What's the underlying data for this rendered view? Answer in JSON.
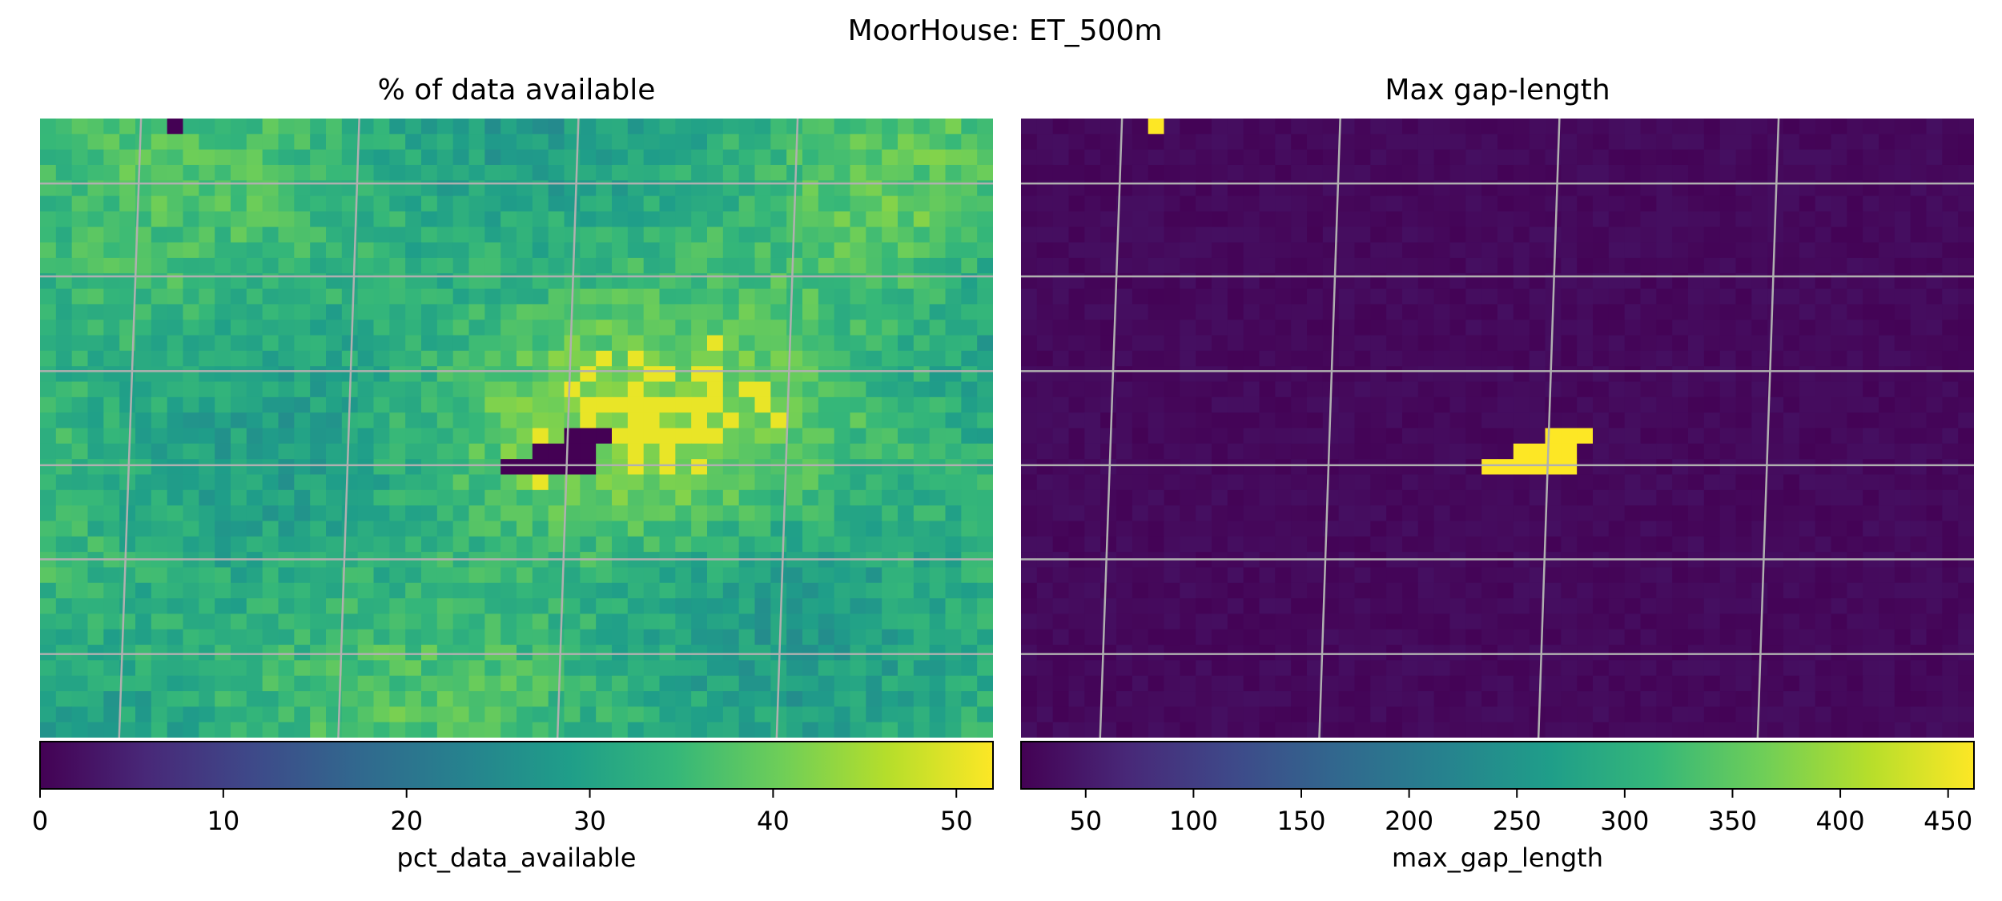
{
  "figure": {
    "suptitle": "MoorHouse: ET_500m"
  },
  "colormap": {
    "name": "viridis",
    "stops": [
      "#440154",
      "#482878",
      "#3e4989",
      "#31688e",
      "#26828e",
      "#1f9e89",
      "#35b779",
      "#6ece58",
      "#b5de2b",
      "#fde725"
    ]
  },
  "gridline_color": "#b0b0b0",
  "chart_data": [
    {
      "type": "heatmap",
      "title": "% of data available",
      "colorbar_label": "pct_data_available",
      "colorbar_range": [
        0,
        52
      ],
      "colorbar_ticks": [
        0,
        10,
        20,
        30,
        40,
        50
      ],
      "grid": true,
      "typical_value_range": [
        22,
        44
      ],
      "highlights": [
        {
          "description": "missing cell top-left",
          "cells_rc": [
            [
              0,
              8
            ]
          ],
          "value": 0
        },
        {
          "description": "missing block center",
          "cells_rc": [
            [
              20,
              33
            ],
            [
              20,
              34
            ],
            [
              20,
              35
            ],
            [
              21,
              31
            ],
            [
              21,
              32
            ],
            [
              21,
              33
            ],
            [
              21,
              34
            ],
            [
              22,
              29
            ],
            [
              22,
              30
            ],
            [
              22,
              31
            ],
            [
              22,
              32
            ],
            [
              22,
              33
            ],
            [
              22,
              34
            ]
          ],
          "value": 0
        },
        {
          "description": "high availability band center-right",
          "value": 50
        }
      ]
    },
    {
      "type": "heatmap",
      "title": "Max gap-length",
      "colorbar_label": "max_gap_length",
      "colorbar_range": [
        20,
        462
      ],
      "colorbar_ticks": [
        50,
        100,
        150,
        200,
        250,
        300,
        350,
        400,
        450
      ],
      "grid": true,
      "typical_value_range": [
        22,
        45
      ],
      "highlights": [
        {
          "description": "long gap top-left",
          "cells_rc": [
            [
              0,
              8
            ]
          ],
          "value": 462
        },
        {
          "description": "long gap block center",
          "cells_rc": [
            [
              20,
              33
            ],
            [
              20,
              34
            ],
            [
              20,
              35
            ],
            [
              21,
              31
            ],
            [
              21,
              32
            ],
            [
              21,
              33
            ],
            [
              21,
              34
            ],
            [
              22,
              29
            ],
            [
              22,
              30
            ],
            [
              22,
              31
            ],
            [
              22,
              32
            ],
            [
              22,
              33
            ],
            [
              22,
              34
            ]
          ],
          "value": 462
        }
      ]
    }
  ]
}
